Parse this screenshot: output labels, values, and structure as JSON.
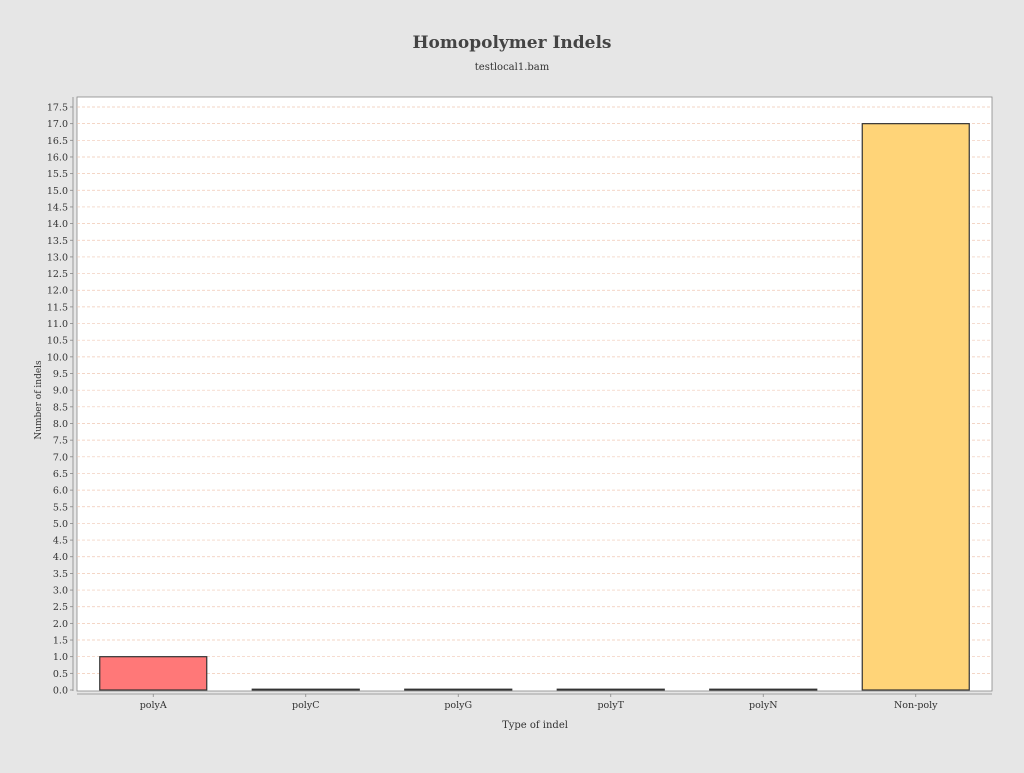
{
  "chart_data": {
    "type": "bar",
    "title": "Homopolymer Indels",
    "subtitle": "testlocal1.bam",
    "xlabel": "Type of indel",
    "ylabel": "Number of indels",
    "categories": [
      "polyA",
      "polyC",
      "polyG",
      "polyT",
      "polyN",
      "Non-poly"
    ],
    "values": [
      1,
      0,
      0,
      0,
      0,
      17
    ],
    "bar_colors": [
      "#ff7878",
      "#ff7878",
      "#ff7878",
      "#ff7878",
      "#ff7878",
      "#ffd478"
    ],
    "ylim": [
      0,
      17.5
    ],
    "y_ticks": [
      "0.0",
      "0.5",
      "1.0",
      "1.5",
      "2.0",
      "2.5",
      "3.0",
      "3.5",
      "4.0",
      "4.5",
      "5.0",
      "5.5",
      "6.0",
      "6.5",
      "7.0",
      "7.5",
      "8.0",
      "8.5",
      "9.0",
      "9.5",
      "10.0",
      "10.5",
      "11.0",
      "11.5",
      "12.0",
      "12.5",
      "13.0",
      "13.5",
      "14.0",
      "14.5",
      "15.0",
      "15.5",
      "16.0",
      "16.5",
      "17.0",
      "17.5"
    ],
    "grid": true,
    "grid_color": "#f0c8b4",
    "background_color": "#e6e6e6",
    "plot_background": "#ffffff",
    "legend": "none"
  }
}
